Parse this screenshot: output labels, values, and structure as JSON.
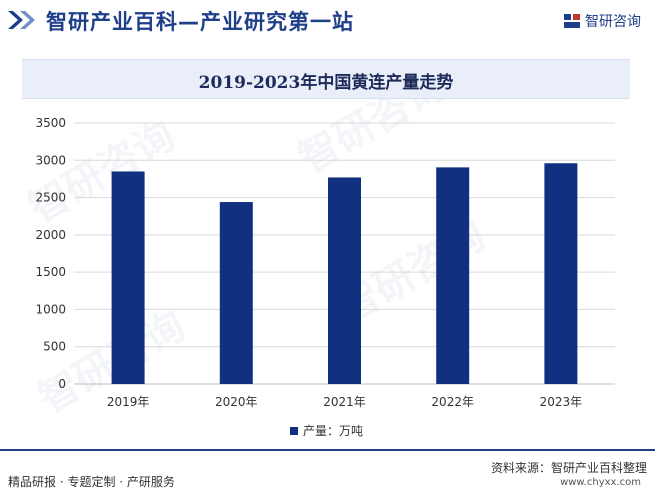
{
  "header": {
    "title": "智研产业百科—产业研究第一站",
    "brand": "智研咨询",
    "brand_color": "#1f3f8a"
  },
  "watermark": "智研咨询",
  "chart_data": {
    "type": "bar",
    "title": "2019-2023年中国黄连产量走势",
    "categories": [
      "2019年",
      "2020年",
      "2021年",
      "2022年",
      "2023年"
    ],
    "series": [
      {
        "name": "产量：万吨",
        "values": [
          2850,
          2440,
          2770,
          2905,
          2960
        ],
        "color": "#11307f"
      }
    ],
    "ylim": [
      0,
      3500
    ],
    "yticks": [
      0,
      500,
      1000,
      1500,
      2000,
      2500,
      3000,
      3500
    ],
    "xlabel": "",
    "ylabel": "",
    "grid": true,
    "legend": "bottom"
  },
  "footer": {
    "left": "精品研报 · 专题定制 · 产研服务",
    "source": "资料来源：智研产业百科整理",
    "url": "www.chyxx.com"
  }
}
